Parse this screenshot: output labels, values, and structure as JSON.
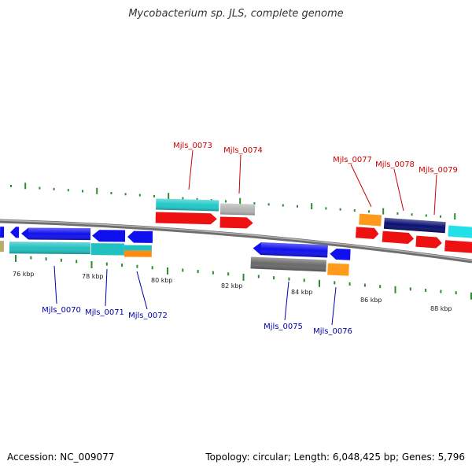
{
  "title": "Mycobacterium sp. JLS, complete genome",
  "footer": {
    "accession": "Accession: NC_009077",
    "summary": "Topology: circular; Length: 6,048,425 bp; Genes: 5,796"
  },
  "colors": {
    "backbone": "#8c8c8c",
    "tick": "#2e8b2e",
    "forward_label": "#cc0000",
    "reverse_label": "#0000aa"
  },
  "kbp_labels": [
    "76 kbp",
    "78 kbp",
    "80 kbp",
    "82 kbp",
    "84 kbp",
    "86 kbp",
    "88 kbp"
  ],
  "gene_labels": {
    "forward": [
      "Mjls_0073",
      "Mjls_0074",
      "Mjls_0077",
      "Mjls_0078",
      "Mjls_0079"
    ],
    "reverse": [
      "Mjls_0070",
      "Mjls_0071",
      "Mjls_0072",
      "Mjls_0075",
      "Mjls_0076"
    ]
  }
}
